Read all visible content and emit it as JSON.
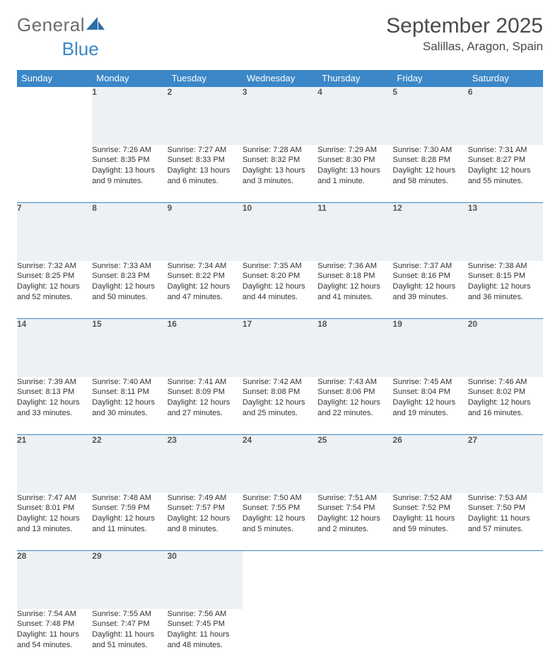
{
  "logo": {
    "text1": "General",
    "text2": "Blue"
  },
  "header": {
    "title": "September 2025",
    "location": "Salillas, Aragon, Spain"
  },
  "calendar": {
    "header_bg": "#3b87c8",
    "header_fg": "#ffffff",
    "daynum_bg": "#eef1f3",
    "day_border": "#3b87c8",
    "weekdays": [
      "Sunday",
      "Monday",
      "Tuesday",
      "Wednesday",
      "Thursday",
      "Friday",
      "Saturday"
    ],
    "weeks": [
      {
        "days": [
          {
            "n": "",
            "lines": [
              "",
              "",
              "",
              ""
            ]
          },
          {
            "n": "1",
            "lines": [
              "Sunrise: 7:26 AM",
              "Sunset: 8:35 PM",
              "Daylight: 13 hours",
              "and 9 minutes."
            ]
          },
          {
            "n": "2",
            "lines": [
              "Sunrise: 7:27 AM",
              "Sunset: 8:33 PM",
              "Daylight: 13 hours",
              "and 6 minutes."
            ]
          },
          {
            "n": "3",
            "lines": [
              "Sunrise: 7:28 AM",
              "Sunset: 8:32 PM",
              "Daylight: 13 hours",
              "and 3 minutes."
            ]
          },
          {
            "n": "4",
            "lines": [
              "Sunrise: 7:29 AM",
              "Sunset: 8:30 PM",
              "Daylight: 13 hours",
              "and 1 minute."
            ]
          },
          {
            "n": "5",
            "lines": [
              "Sunrise: 7:30 AM",
              "Sunset: 8:28 PM",
              "Daylight: 12 hours",
              "and 58 minutes."
            ]
          },
          {
            "n": "6",
            "lines": [
              "Sunrise: 7:31 AM",
              "Sunset: 8:27 PM",
              "Daylight: 12 hours",
              "and 55 minutes."
            ]
          }
        ]
      },
      {
        "days": [
          {
            "n": "7",
            "lines": [
              "Sunrise: 7:32 AM",
              "Sunset: 8:25 PM",
              "Daylight: 12 hours",
              "and 52 minutes."
            ]
          },
          {
            "n": "8",
            "lines": [
              "Sunrise: 7:33 AM",
              "Sunset: 8:23 PM",
              "Daylight: 12 hours",
              "and 50 minutes."
            ]
          },
          {
            "n": "9",
            "lines": [
              "Sunrise: 7:34 AM",
              "Sunset: 8:22 PM",
              "Daylight: 12 hours",
              "and 47 minutes."
            ]
          },
          {
            "n": "10",
            "lines": [
              "Sunrise: 7:35 AM",
              "Sunset: 8:20 PM",
              "Daylight: 12 hours",
              "and 44 minutes."
            ]
          },
          {
            "n": "11",
            "lines": [
              "Sunrise: 7:36 AM",
              "Sunset: 8:18 PM",
              "Daylight: 12 hours",
              "and 41 minutes."
            ]
          },
          {
            "n": "12",
            "lines": [
              "Sunrise: 7:37 AM",
              "Sunset: 8:16 PM",
              "Daylight: 12 hours",
              "and 39 minutes."
            ]
          },
          {
            "n": "13",
            "lines": [
              "Sunrise: 7:38 AM",
              "Sunset: 8:15 PM",
              "Daylight: 12 hours",
              "and 36 minutes."
            ]
          }
        ]
      },
      {
        "days": [
          {
            "n": "14",
            "lines": [
              "Sunrise: 7:39 AM",
              "Sunset: 8:13 PM",
              "Daylight: 12 hours",
              "and 33 minutes."
            ]
          },
          {
            "n": "15",
            "lines": [
              "Sunrise: 7:40 AM",
              "Sunset: 8:11 PM",
              "Daylight: 12 hours",
              "and 30 minutes."
            ]
          },
          {
            "n": "16",
            "lines": [
              "Sunrise: 7:41 AM",
              "Sunset: 8:09 PM",
              "Daylight: 12 hours",
              "and 27 minutes."
            ]
          },
          {
            "n": "17",
            "lines": [
              "Sunrise: 7:42 AM",
              "Sunset: 8:08 PM",
              "Daylight: 12 hours",
              "and 25 minutes."
            ]
          },
          {
            "n": "18",
            "lines": [
              "Sunrise: 7:43 AM",
              "Sunset: 8:06 PM",
              "Daylight: 12 hours",
              "and 22 minutes."
            ]
          },
          {
            "n": "19",
            "lines": [
              "Sunrise: 7:45 AM",
              "Sunset: 8:04 PM",
              "Daylight: 12 hours",
              "and 19 minutes."
            ]
          },
          {
            "n": "20",
            "lines": [
              "Sunrise: 7:46 AM",
              "Sunset: 8:02 PM",
              "Daylight: 12 hours",
              "and 16 minutes."
            ]
          }
        ]
      },
      {
        "days": [
          {
            "n": "21",
            "lines": [
              "Sunrise: 7:47 AM",
              "Sunset: 8:01 PM",
              "Daylight: 12 hours",
              "and 13 minutes."
            ]
          },
          {
            "n": "22",
            "lines": [
              "Sunrise: 7:48 AM",
              "Sunset: 7:59 PM",
              "Daylight: 12 hours",
              "and 11 minutes."
            ]
          },
          {
            "n": "23",
            "lines": [
              "Sunrise: 7:49 AM",
              "Sunset: 7:57 PM",
              "Daylight: 12 hours",
              "and 8 minutes."
            ]
          },
          {
            "n": "24",
            "lines": [
              "Sunrise: 7:50 AM",
              "Sunset: 7:55 PM",
              "Daylight: 12 hours",
              "and 5 minutes."
            ]
          },
          {
            "n": "25",
            "lines": [
              "Sunrise: 7:51 AM",
              "Sunset: 7:54 PM",
              "Daylight: 12 hours",
              "and 2 minutes."
            ]
          },
          {
            "n": "26",
            "lines": [
              "Sunrise: 7:52 AM",
              "Sunset: 7:52 PM",
              "Daylight: 11 hours",
              "and 59 minutes."
            ]
          },
          {
            "n": "27",
            "lines": [
              "Sunrise: 7:53 AM",
              "Sunset: 7:50 PM",
              "Daylight: 11 hours",
              "and 57 minutes."
            ]
          }
        ]
      },
      {
        "days": [
          {
            "n": "28",
            "lines": [
              "Sunrise: 7:54 AM",
              "Sunset: 7:48 PM",
              "Daylight: 11 hours",
              "and 54 minutes."
            ]
          },
          {
            "n": "29",
            "lines": [
              "Sunrise: 7:55 AM",
              "Sunset: 7:47 PM",
              "Daylight: 11 hours",
              "and 51 minutes."
            ]
          },
          {
            "n": "30",
            "lines": [
              "Sunrise: 7:56 AM",
              "Sunset: 7:45 PM",
              "Daylight: 11 hours",
              "and 48 minutes."
            ]
          },
          {
            "n": "",
            "lines": [
              "",
              "",
              "",
              ""
            ]
          },
          {
            "n": "",
            "lines": [
              "",
              "",
              "",
              ""
            ]
          },
          {
            "n": "",
            "lines": [
              "",
              "",
              "",
              ""
            ]
          },
          {
            "n": "",
            "lines": [
              "",
              "",
              "",
              ""
            ]
          }
        ]
      }
    ]
  }
}
